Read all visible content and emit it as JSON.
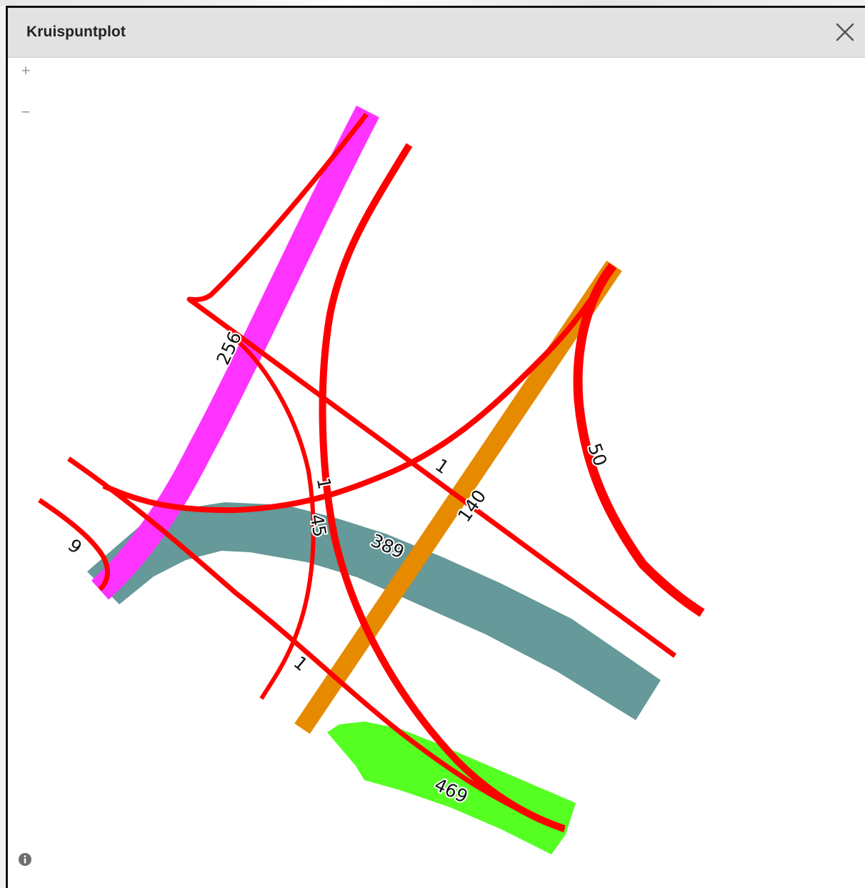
{
  "dialog": {
    "title": "Kruispuntplot",
    "close_icon": "close-icon",
    "info_icon": "info-icon"
  },
  "map_controls": {
    "zoom_in_label": "+",
    "zoom_out_label": "−"
  },
  "colors": {
    "traffic_line": "#ff0000",
    "magenta_road": "#ff33ff",
    "orange_road": "#e68a00",
    "teal_road": "#669999",
    "green_road": "#55ff22"
  },
  "flow_labels": {
    "magenta": "256",
    "teal": "389",
    "green": "469",
    "orange": "140",
    "east_curve": "50",
    "west_curve": "9",
    "central_a": "1",
    "central_b": "45",
    "diagonal": "1",
    "south": "1"
  }
}
